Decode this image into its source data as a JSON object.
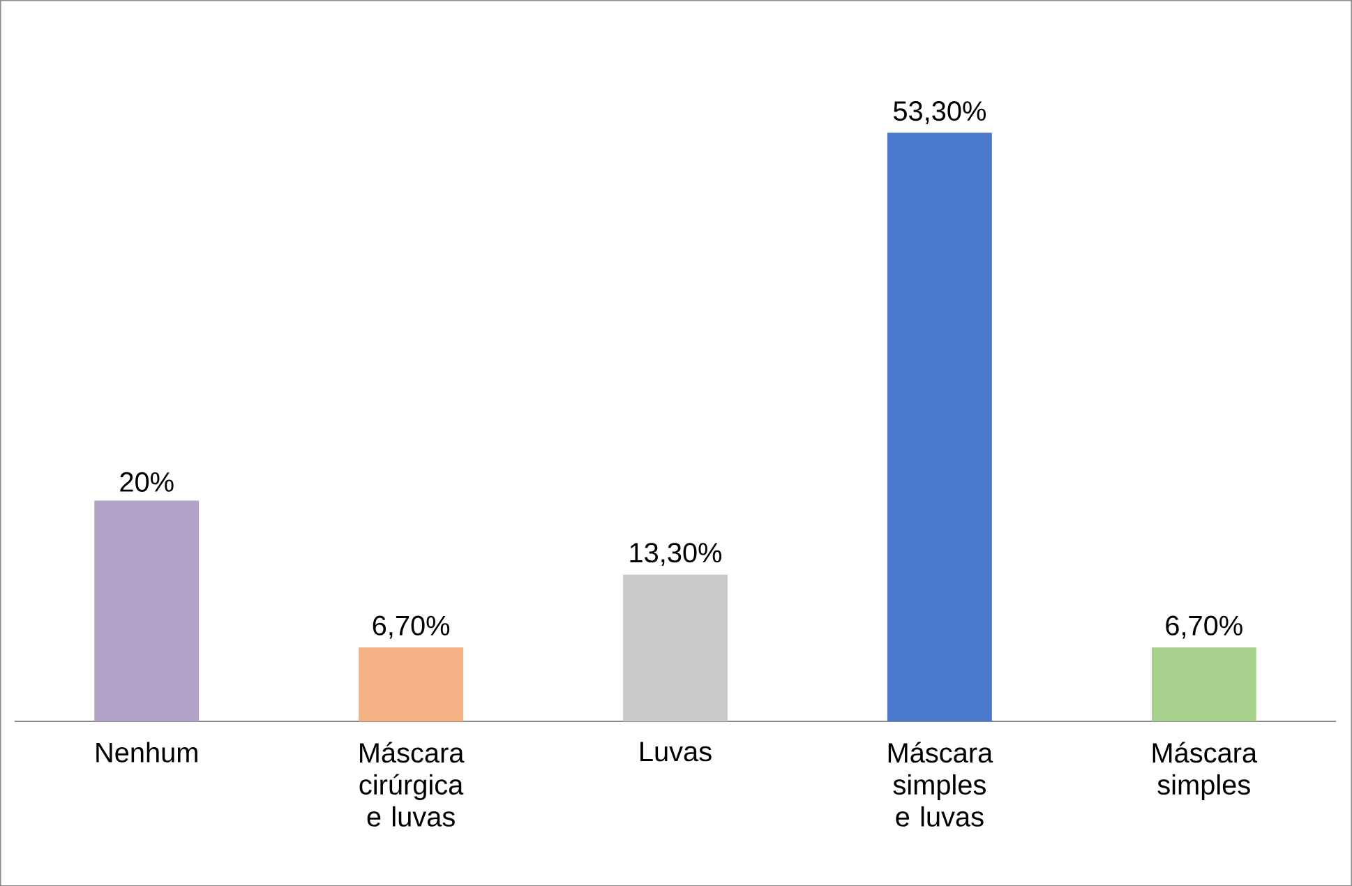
{
  "chart_data": {
    "type": "bar",
    "categories": [
      "Nenhum",
      "Máscara cirúrgica e luvas",
      "Luvas",
      "Máscara simples e luvas",
      "Máscara simples"
    ],
    "values": [
      20,
      6.7,
      13.3,
      53.3,
      6.7
    ],
    "value_labels": [
      "20%",
      "6,70%",
      "13,30%",
      "53,30%",
      "6,70%"
    ],
    "colors": [
      "#b3a2c7",
      "#f4b183",
      "#c9c9c9",
      "#4a78cc",
      "#a9d18e"
    ]
  }
}
